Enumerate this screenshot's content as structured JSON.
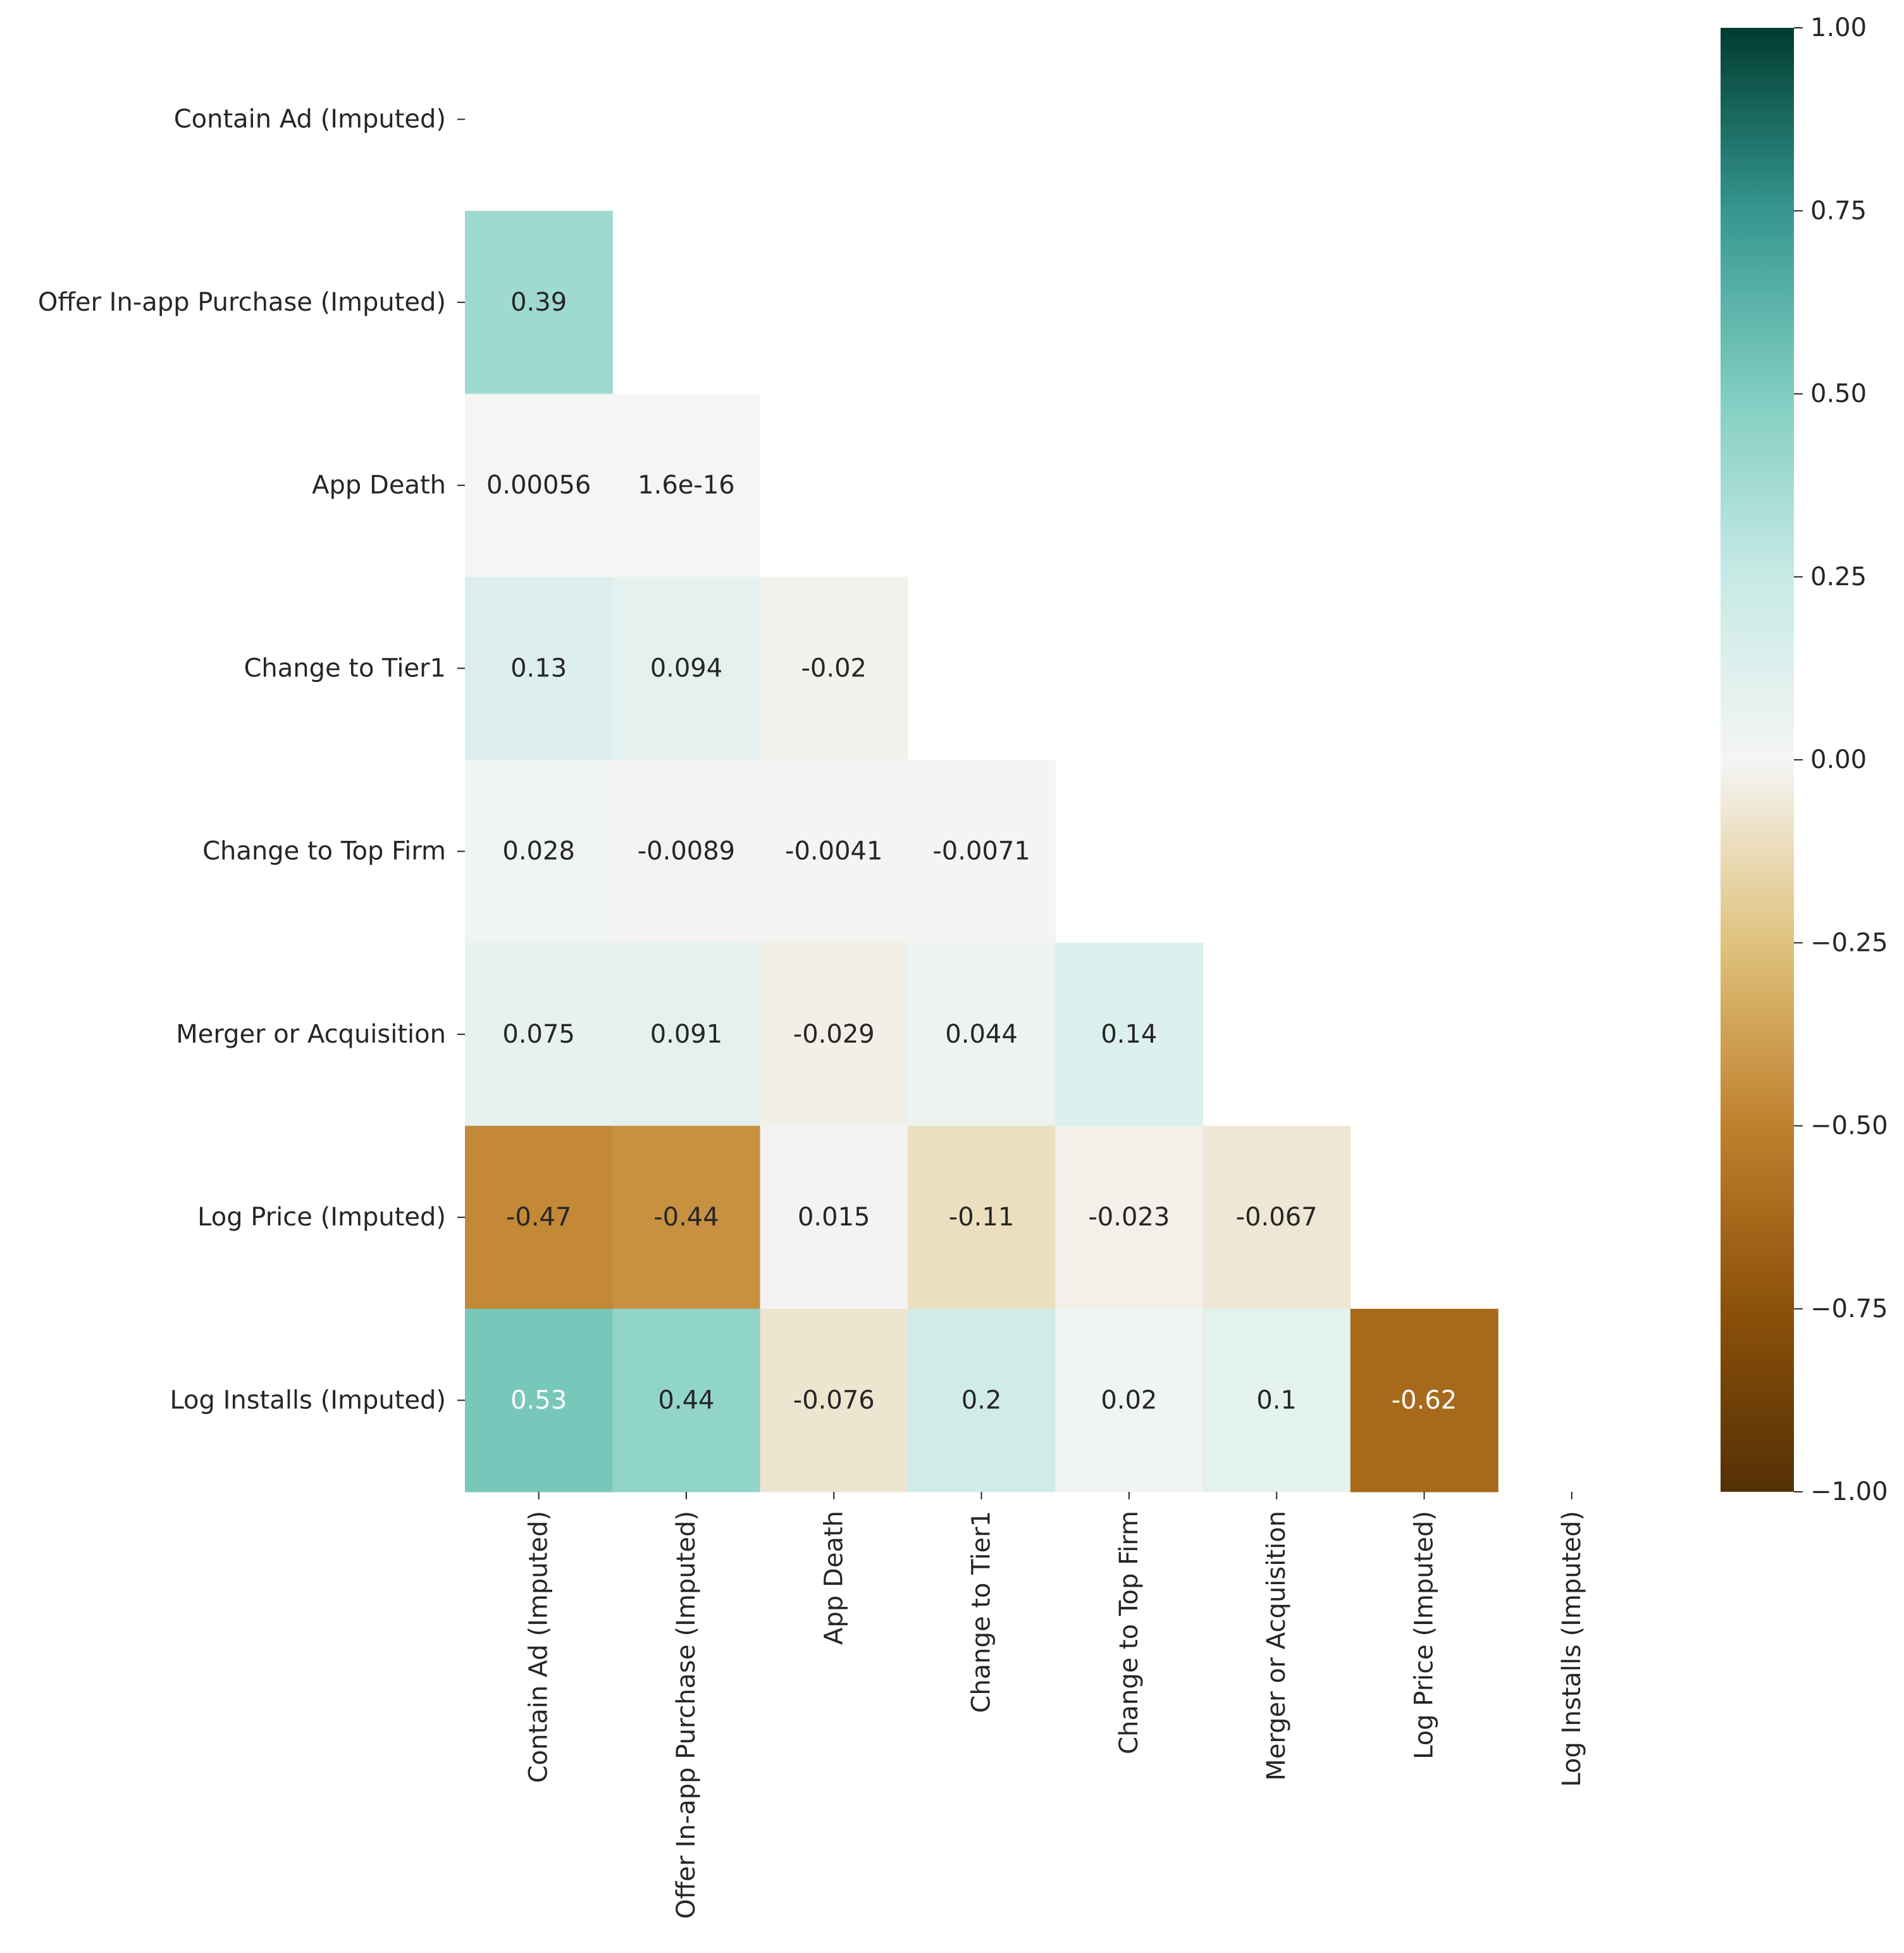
{
  "chart_data": {
    "type": "heatmap",
    "title": "",
    "variables": [
      "Contain Ad (Imputed)",
      "Offer In-app Purchase (Imputed)",
      "App Death",
      "Change to Tier1",
      "Change to Top Firm",
      "Merger or Acquisition",
      "Log Price (Imputed)",
      "Log Installs (Imputed)"
    ],
    "mask": "upper-triangle-including-diagonal",
    "cells": [
      {
        "row": 1,
        "col": 0,
        "value": 0.39,
        "label": "0.39"
      },
      {
        "row": 2,
        "col": 0,
        "value": 0.00056,
        "label": "0.00056"
      },
      {
        "row": 2,
        "col": 1,
        "value": 1.6e-16,
        "label": "1.6e-16"
      },
      {
        "row": 3,
        "col": 0,
        "value": 0.13,
        "label": "0.13"
      },
      {
        "row": 3,
        "col": 1,
        "value": 0.094,
        "label": "0.094"
      },
      {
        "row": 3,
        "col": 2,
        "value": -0.02,
        "label": "-0.02"
      },
      {
        "row": 4,
        "col": 0,
        "value": 0.028,
        "label": "0.028"
      },
      {
        "row": 4,
        "col": 1,
        "value": -0.0089,
        "label": "-0.0089"
      },
      {
        "row": 4,
        "col": 2,
        "value": -0.0041,
        "label": "-0.0041"
      },
      {
        "row": 4,
        "col": 3,
        "value": -0.0071,
        "label": "-0.0071"
      },
      {
        "row": 5,
        "col": 0,
        "value": 0.075,
        "label": "0.075"
      },
      {
        "row": 5,
        "col": 1,
        "value": 0.091,
        "label": "0.091"
      },
      {
        "row": 5,
        "col": 2,
        "value": -0.029,
        "label": "-0.029"
      },
      {
        "row": 5,
        "col": 3,
        "value": 0.044,
        "label": "0.044"
      },
      {
        "row": 5,
        "col": 4,
        "value": 0.14,
        "label": "0.14"
      },
      {
        "row": 6,
        "col": 0,
        "value": -0.47,
        "label": "-0.47"
      },
      {
        "row": 6,
        "col": 1,
        "value": -0.44,
        "label": "-0.44"
      },
      {
        "row": 6,
        "col": 2,
        "value": 0.015,
        "label": "0.015"
      },
      {
        "row": 6,
        "col": 3,
        "value": -0.11,
        "label": "-0.11"
      },
      {
        "row": 6,
        "col": 4,
        "value": -0.023,
        "label": "-0.023"
      },
      {
        "row": 6,
        "col": 5,
        "value": -0.067,
        "label": "-0.067"
      },
      {
        "row": 7,
        "col": 0,
        "value": 0.53,
        "label": "0.53"
      },
      {
        "row": 7,
        "col": 1,
        "value": 0.44,
        "label": "0.44"
      },
      {
        "row": 7,
        "col": 2,
        "value": -0.076,
        "label": "-0.076"
      },
      {
        "row": 7,
        "col": 3,
        "value": 0.2,
        "label": "0.2"
      },
      {
        "row": 7,
        "col": 4,
        "value": 0.02,
        "label": "0.02"
      },
      {
        "row": 7,
        "col": 5,
        "value": 0.1,
        "label": "0.1"
      },
      {
        "row": 7,
        "col": 6,
        "value": -0.62,
        "label": "-0.62"
      }
    ],
    "colorbar": {
      "range": [
        -1,
        1
      ],
      "ticks": [
        {
          "value": 1.0,
          "label": "1.00"
        },
        {
          "value": 0.75,
          "label": "0.75"
        },
        {
          "value": 0.5,
          "label": "0.50"
        },
        {
          "value": 0.25,
          "label": "0.25"
        },
        {
          "value": 0.0,
          "label": "0.00"
        },
        {
          "value": -0.25,
          "label": "−0.25"
        },
        {
          "value": -0.5,
          "label": "−0.50"
        },
        {
          "value": -0.75,
          "label": "−0.75"
        },
        {
          "value": -1.0,
          "label": "−1.00"
        }
      ],
      "colormap": "BrBG",
      "stops": [
        {
          "value": -1.0,
          "color": "#543005"
        },
        {
          "value": -0.75,
          "color": "#8c510a"
        },
        {
          "value": -0.5,
          "color": "#bf812d"
        },
        {
          "value": -0.25,
          "color": "#dfc27d"
        },
        {
          "value": 0.0,
          "color": "#f5f5f5"
        },
        {
          "value": 0.25,
          "color": "#c7eae5"
        },
        {
          "value": 0.5,
          "color": "#80cdc1"
        },
        {
          "value": 0.75,
          "color": "#35978f"
        },
        {
          "value": 1.0,
          "color": "#003c30"
        }
      ]
    }
  }
}
